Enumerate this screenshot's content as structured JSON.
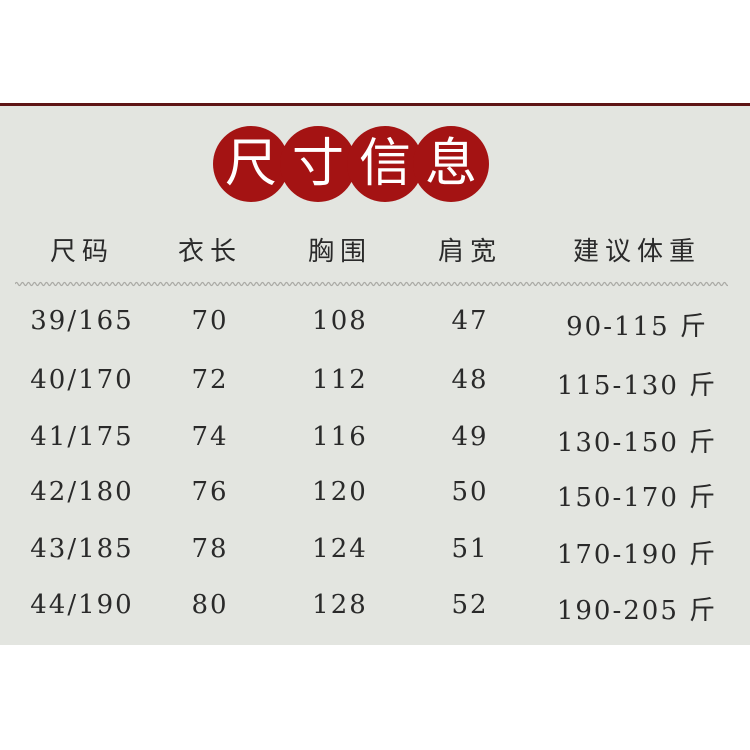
{
  "title_chars": [
    "尺",
    "寸",
    "信",
    "息"
  ],
  "accent_color": "#a41313",
  "headers": [
    "尺码",
    "衣长",
    "胸围",
    "肩宽",
    "建议体重"
  ],
  "rows": [
    [
      "39/165",
      "70",
      "108",
      "47",
      "90-115 斤"
    ],
    [
      "40/170",
      "72",
      "112",
      "48",
      "115-130 斤"
    ],
    [
      "41/175",
      "74",
      "116",
      "49",
      "130-150 斤"
    ],
    [
      "42/180",
      "76",
      "120",
      "50",
      "150-170 斤"
    ],
    [
      "43/185",
      "78",
      "124",
      "51",
      "170-190 斤"
    ],
    [
      "44/190",
      "80",
      "128",
      "52",
      "190-205 斤"
    ]
  ]
}
